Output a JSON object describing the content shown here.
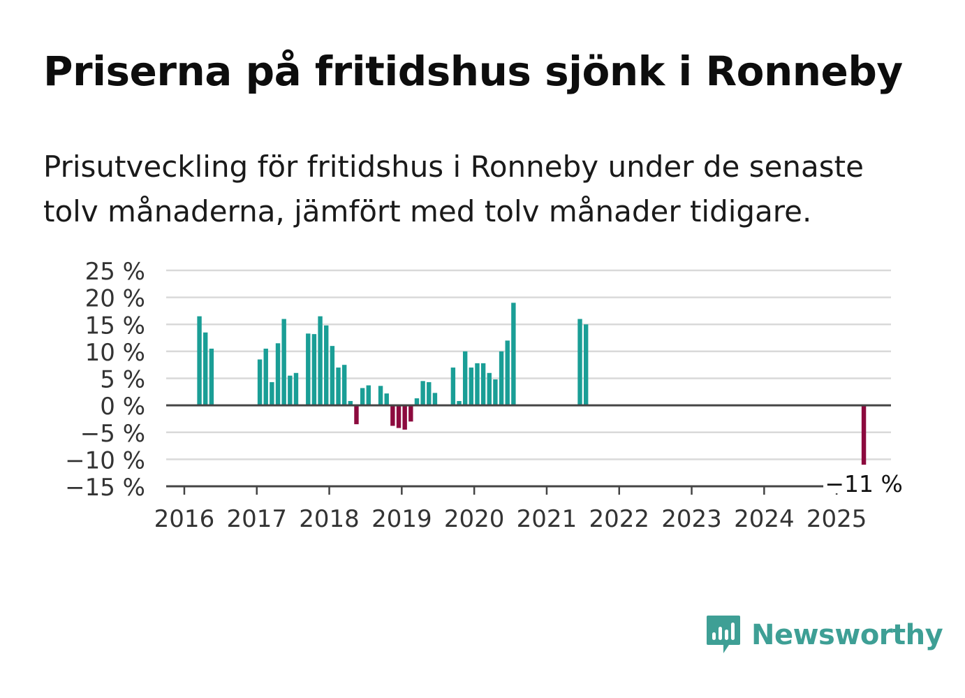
{
  "title": "Priserna på fritidshus sjönk i Ronneby",
  "subtitle": "Prisutveckling för fritidshus i Ronneby under de senaste tolv månaderna, jämfört med tolv månader tidigare.",
  "brand": {
    "name": "Newsworthy",
    "color": "#3e9f95",
    "icon": "bar-chart-badge-icon"
  },
  "colors": {
    "positive": "#1a9e96",
    "negative": "#8c0a3e",
    "grid": "#d9d9d9",
    "axis": "#444444",
    "text": "#333333"
  },
  "chart_data": {
    "type": "bar",
    "title": "Priserna på fritidshus sjönk i Ronneby",
    "xlabel": "",
    "ylabel": "",
    "ylim": [
      -15,
      25
    ],
    "yticks": [
      25,
      20,
      15,
      10,
      5,
      0,
      -5,
      -10,
      -15
    ],
    "ytick_labels": [
      "25 %",
      "20 %",
      "15 %",
      "10 %",
      "5 %",
      "0 %",
      "−5 %",
      "−10 %",
      "−15 %"
    ],
    "xlim": [
      "2015-10",
      "2025-10"
    ],
    "x_ticks": [
      "2016",
      "2017",
      "2018",
      "2019",
      "2020",
      "2021",
      "2022",
      "2023",
      "2024",
      "2025"
    ],
    "grid": true,
    "annotation": {
      "date": "2025-05",
      "text": "−11 %"
    },
    "series": [
      {
        "values": [
          {
            "date": "2016-03",
            "value": 16.5
          },
          {
            "date": "2016-04",
            "value": 13.5
          },
          {
            "date": "2016-05",
            "value": 10.5
          },
          {
            "date": "2017-01",
            "value": 8.5
          },
          {
            "date": "2017-02",
            "value": 10.5
          },
          {
            "date": "2017-03",
            "value": 4.3
          },
          {
            "date": "2017-04",
            "value": 11.5
          },
          {
            "date": "2017-05",
            "value": 16.0
          },
          {
            "date": "2017-06",
            "value": 5.5
          },
          {
            "date": "2017-07",
            "value": 6.0
          },
          {
            "date": "2017-09",
            "value": 13.3
          },
          {
            "date": "2017-10",
            "value": 13.2
          },
          {
            "date": "2017-11",
            "value": 16.5
          },
          {
            "date": "2017-12",
            "value": 14.8
          },
          {
            "date": "2018-01",
            "value": 11.0
          },
          {
            "date": "2018-02",
            "value": 7.0
          },
          {
            "date": "2018-03",
            "value": 7.5
          },
          {
            "date": "2018-04",
            "value": 0.8
          },
          {
            "date": "2018-05",
            "value": -3.5
          },
          {
            "date": "2018-06",
            "value": 3.2
          },
          {
            "date": "2018-07",
            "value": 3.7
          },
          {
            "date": "2018-09",
            "value": 3.6
          },
          {
            "date": "2018-10",
            "value": 2.2
          },
          {
            "date": "2018-11",
            "value": -3.8
          },
          {
            "date": "2018-12",
            "value": -4.2
          },
          {
            "date": "2019-01",
            "value": -4.5
          },
          {
            "date": "2019-02",
            "value": -3.0
          },
          {
            "date": "2019-03",
            "value": 1.3
          },
          {
            "date": "2019-04",
            "value": 4.5
          },
          {
            "date": "2019-05",
            "value": 4.3
          },
          {
            "date": "2019-06",
            "value": 2.3
          },
          {
            "date": "2019-09",
            "value": 7.0
          },
          {
            "date": "2019-10",
            "value": 0.8
          },
          {
            "date": "2019-11",
            "value": 10.0
          },
          {
            "date": "2019-12",
            "value": 7.0
          },
          {
            "date": "2020-01",
            "value": 7.8
          },
          {
            "date": "2020-02",
            "value": 7.8
          },
          {
            "date": "2020-03",
            "value": 6.0
          },
          {
            "date": "2020-04",
            "value": 4.8
          },
          {
            "date": "2020-05",
            "value": 10.0
          },
          {
            "date": "2020-06",
            "value": 12.0
          },
          {
            "date": "2020-07",
            "value": 19.0
          },
          {
            "date": "2021-06",
            "value": 16.0
          },
          {
            "date": "2021-07",
            "value": 15.0
          },
          {
            "date": "2025-05",
            "value": -11.0
          }
        ]
      }
    ]
  }
}
